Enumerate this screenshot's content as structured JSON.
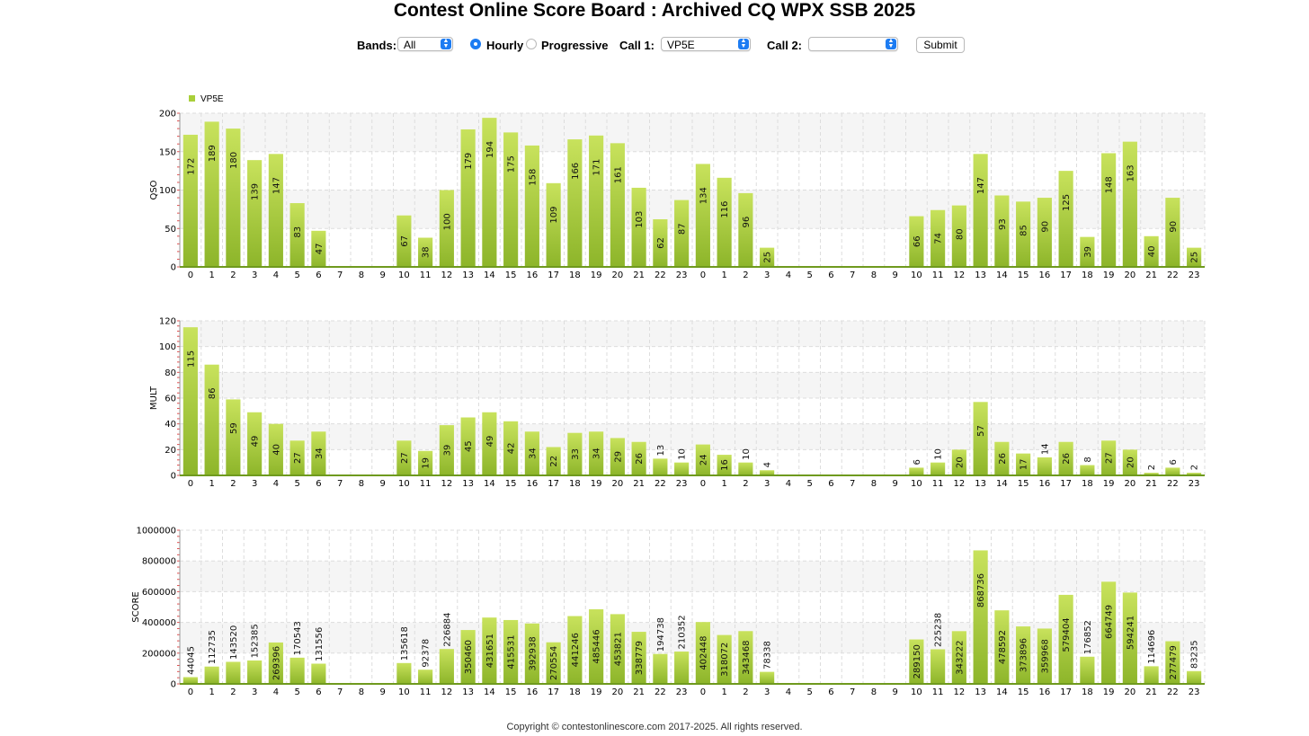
{
  "page": {
    "title": "Contest Online Score Board : Archived CQ WPX SSB 2025",
    "footer": "Copyright © contestonlinescore.com 2017-2025. All rights reserved."
  },
  "controls": {
    "bands_label": "Bands:",
    "bands_value": "All",
    "hourly_label": "Hourly",
    "progressive_label": "Progressive",
    "mode_selected": "Hourly",
    "call1_label": "Call 1:",
    "call1_value": "VP5E",
    "call2_label": "Call 2:",
    "call2_value": "",
    "submit_label": "Submit"
  },
  "legend": {
    "label": "VP5E",
    "color": "#a9cf3a"
  },
  "colors": {
    "bar_top": "#c8e25c",
    "bar_bottom": "#8db52a",
    "baseline": "#6f9a1e",
    "grid": "#dddddd",
    "band": "#f5f5f5",
    "tick": "#e05050"
  },
  "chart_data": [
    {
      "type": "bar",
      "ylabel": "QSO",
      "ylim": [
        0,
        200
      ],
      "yticks": [
        0,
        50,
        100,
        150,
        200
      ],
      "series_name": "VP5E",
      "categories": [
        "0",
        "1",
        "2",
        "3",
        "4",
        "5",
        "6",
        "7",
        "8",
        "9",
        "10",
        "11",
        "12",
        "13",
        "14",
        "15",
        "16",
        "17",
        "18",
        "19",
        "20",
        "21",
        "22",
        "23",
        "0",
        "1",
        "2",
        "3",
        "4",
        "5",
        "6",
        "7",
        "8",
        "9",
        "10",
        "11",
        "12",
        "13",
        "14",
        "15",
        "16",
        "17",
        "18",
        "19",
        "20",
        "21",
        "22",
        "23"
      ],
      "values": [
        172,
        189,
        180,
        139,
        147,
        83,
        47,
        0,
        0,
        0,
        67,
        38,
        100,
        179,
        194,
        175,
        158,
        109,
        166,
        171,
        161,
        103,
        62,
        87,
        134,
        116,
        96,
        25,
        0,
        0,
        0,
        0,
        0,
        0,
        66,
        74,
        80,
        147,
        93,
        85,
        90,
        125,
        39,
        148,
        163,
        40,
        90,
        25
      ]
    },
    {
      "type": "bar",
      "ylabel": "MULT",
      "ylim": [
        0,
        120
      ],
      "yticks": [
        0,
        20,
        40,
        60,
        80,
        100,
        120
      ],
      "series_name": "VP5E",
      "categories": [
        "0",
        "1",
        "2",
        "3",
        "4",
        "5",
        "6",
        "7",
        "8",
        "9",
        "10",
        "11",
        "12",
        "13",
        "14",
        "15",
        "16",
        "17",
        "18",
        "19",
        "20",
        "21",
        "22",
        "23",
        "0",
        "1",
        "2",
        "3",
        "4",
        "5",
        "6",
        "7",
        "8",
        "9",
        "10",
        "11",
        "12",
        "13",
        "14",
        "15",
        "16",
        "17",
        "18",
        "19",
        "20",
        "21",
        "22",
        "23"
      ],
      "values": [
        115,
        86,
        59,
        49,
        40,
        27,
        34,
        0,
        0,
        0,
        27,
        19,
        39,
        45,
        49,
        42,
        34,
        22,
        33,
        34,
        29,
        26,
        13,
        10,
        24,
        16,
        10,
        4,
        0,
        0,
        0,
        0,
        0,
        0,
        6,
        10,
        20,
        57,
        26,
        17,
        14,
        26,
        8,
        27,
        20,
        2,
        6,
        2
      ]
    },
    {
      "type": "bar",
      "ylabel": "SCORE",
      "ylim": [
        0,
        1000000
      ],
      "yticks": [
        0,
        200000,
        400000,
        600000,
        800000,
        1000000
      ],
      "series_name": "VP5E",
      "categories": [
        "0",
        "1",
        "2",
        "3",
        "4",
        "5",
        "6",
        "7",
        "8",
        "9",
        "10",
        "11",
        "12",
        "13",
        "14",
        "15",
        "16",
        "17",
        "18",
        "19",
        "20",
        "21",
        "22",
        "23",
        "0",
        "1",
        "2",
        "3",
        "4",
        "5",
        "6",
        "7",
        "8",
        "9",
        "10",
        "11",
        "12",
        "13",
        "14",
        "15",
        "16",
        "17",
        "18",
        "19",
        "20",
        "21",
        "22",
        "23"
      ],
      "values": [
        44045,
        112735,
        143520,
        152385,
        269396,
        170543,
        131556,
        0,
        0,
        0,
        135618,
        92378,
        226884,
        350460,
        431651,
        415531,
        392938,
        270554,
        441246,
        485446,
        453821,
        338779,
        194738,
        210352,
        402448,
        318072,
        343468,
        78338,
        0,
        0,
        0,
        0,
        0,
        0,
        289150,
        225238,
        343222,
        868736,
        478592,
        373896,
        359968,
        579404,
        176852,
        664749,
        594241,
        114696,
        277479,
        83235
      ]
    }
  ]
}
